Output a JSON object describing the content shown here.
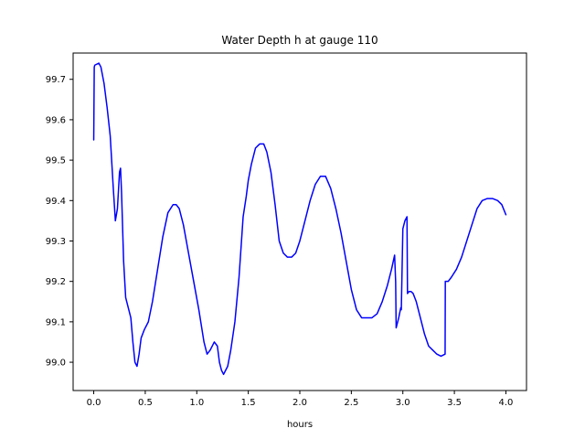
{
  "chart_data": {
    "type": "line",
    "title": "Water Depth h at gauge 110",
    "xlabel": "hours",
    "ylabel": "",
    "xlim": [
      -0.2,
      4.2
    ],
    "ylim": [
      98.93,
      99.765
    ],
    "grid": false,
    "x_ticks": [
      0.0,
      0.5,
      1.0,
      1.5,
      2.0,
      2.5,
      3.0,
      3.5,
      4.0
    ],
    "x_tick_labels": [
      "0.0",
      "0.5",
      "1.0",
      "1.5",
      "2.0",
      "2.5",
      "3.0",
      "3.5",
      "4.0"
    ],
    "y_ticks": [
      99.0,
      99.1,
      99.2,
      99.3,
      99.4,
      99.5,
      99.6,
      99.7
    ],
    "y_tick_labels": [
      "99.0",
      "99.1",
      "99.2",
      "99.3",
      "99.4",
      "99.5",
      "99.6",
      "99.7"
    ],
    "series": [
      {
        "color": "#0000ff",
        "x": [
          0.0,
          0.005,
          0.01,
          0.05,
          0.07,
          0.1,
          0.13,
          0.16,
          0.19,
          0.21,
          0.23,
          0.25,
          0.26,
          0.27,
          0.29,
          0.31,
          0.33,
          0.36,
          0.38,
          0.4,
          0.42,
          0.44,
          0.46,
          0.49,
          0.53,
          0.57,
          0.62,
          0.67,
          0.72,
          0.77,
          0.8,
          0.83,
          0.87,
          0.92,
          0.97,
          1.02,
          1.07,
          1.1,
          1.13,
          1.17,
          1.2,
          1.22,
          1.24,
          1.26,
          1.28,
          1.3,
          1.33,
          1.37,
          1.41,
          1.45,
          1.48,
          1.5,
          1.53,
          1.57,
          1.61,
          1.65,
          1.68,
          1.72,
          1.76,
          1.8,
          1.84,
          1.88,
          1.92,
          1.96,
          2.0,
          2.05,
          2.1,
          2.15,
          2.2,
          2.25,
          2.3,
          2.35,
          2.4,
          2.45,
          2.5,
          2.55,
          2.6,
          2.65,
          2.7,
          2.75,
          2.8,
          2.85,
          2.89,
          2.92,
          2.93,
          2.935,
          2.96,
          2.98,
          2.985,
          3.0,
          3.01,
          3.02,
          3.03,
          3.04,
          3.045,
          3.06,
          3.08,
          3.1,
          3.13,
          3.17,
          3.21,
          3.25,
          3.29,
          3.33,
          3.37,
          3.41,
          3.412,
          3.44,
          3.47,
          3.52,
          3.57,
          3.62,
          3.67,
          3.72,
          3.77,
          3.82,
          3.87,
          3.92,
          3.96,
          4.0
        ],
        "values": [
          99.55,
          99.73,
          99.735,
          99.74,
          99.73,
          99.69,
          99.63,
          99.56,
          99.43,
          99.35,
          99.38,
          99.47,
          99.48,
          99.42,
          99.25,
          99.16,
          99.14,
          99.11,
          99.05,
          99.0,
          98.99,
          99.02,
          99.06,
          99.08,
          99.1,
          99.15,
          99.23,
          99.31,
          99.37,
          99.39,
          99.39,
          99.38,
          99.34,
          99.27,
          99.2,
          99.13,
          99.05,
          99.02,
          99.03,
          99.05,
          99.04,
          99.0,
          98.98,
          98.97,
          98.98,
          98.99,
          99.03,
          99.1,
          99.21,
          99.36,
          99.41,
          99.45,
          99.49,
          99.53,
          99.54,
          99.54,
          99.52,
          99.47,
          99.39,
          99.3,
          99.27,
          99.26,
          99.26,
          99.27,
          99.3,
          99.35,
          99.4,
          99.44,
          99.46,
          99.46,
          99.43,
          99.38,
          99.32,
          99.25,
          99.18,
          99.13,
          99.11,
          99.11,
          99.11,
          99.12,
          99.15,
          99.19,
          99.23,
          99.265,
          99.2,
          99.085,
          99.11,
          99.135,
          99.13,
          99.33,
          99.34,
          99.35,
          99.355,
          99.36,
          99.17,
          99.175,
          99.175,
          99.17,
          99.15,
          99.11,
          99.07,
          99.04,
          99.03,
          99.02,
          99.015,
          99.02,
          99.2,
          99.2,
          99.21,
          99.23,
          99.26,
          99.3,
          99.34,
          99.38,
          99.4,
          99.405,
          99.405,
          99.4,
          99.39,
          99.365
        ]
      }
    ]
  }
}
